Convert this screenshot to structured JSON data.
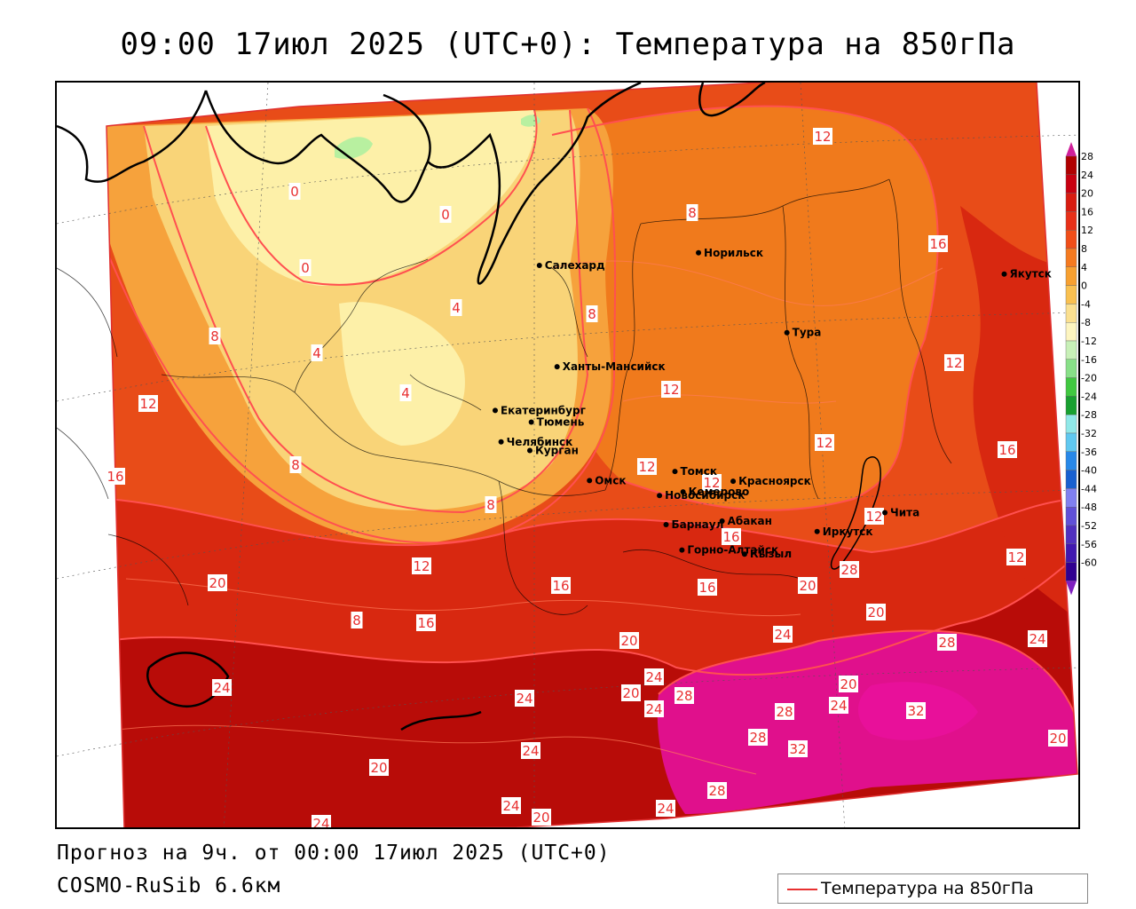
{
  "title": "09:00 17июл 2025 (UTC+0): Температура на 850гПа",
  "footer": {
    "forecast": "Прогноз на 9ч. от 00:00 17июл 2025 (UTC+0)",
    "model": "COSMO-RuSib 6.6км"
  },
  "legend": {
    "label": "Температура на 850гПа",
    "line_color": "#e83030"
  },
  "colorbar": {
    "ticks": [
      "28",
      "24",
      "20",
      "16",
      "12",
      "8",
      "4",
      "0",
      "-4",
      "-8",
      "-12",
      "-16",
      "-20",
      "-24",
      "-28",
      "-32",
      "-36",
      "-40",
      "-44",
      "-48",
      "-52",
      "-56",
      "-60"
    ],
    "colors": [
      "#b00000",
      "#c80010",
      "#d81c10",
      "#e83018",
      "#f04e18",
      "#f57a20",
      "#f7a030",
      "#f9c050",
      "#fbe090",
      "#fdf5c0",
      "#c8f0b8",
      "#88e088",
      "#40c840",
      "#18a030",
      "#90e8e8",
      "#60c8f0",
      "#2888e8",
      "#1860d0",
      "#8080f0",
      "#6050d8",
      "#5030c0",
      "#4018b0",
      "#300090"
    ],
    "top_arrow_color": "#d0209a",
    "bottom_arrow_color": "#8020c0"
  },
  "zone_colors": {
    "z0": "#fdf0a8",
    "z4": "#f9d478",
    "z8": "#f6a23c",
    "z12": "#f07a1c",
    "z16": "#e84c18",
    "z20": "#d82810",
    "z24": "#b80c08",
    "z28": "#e0108c",
    "z32": "#e8109a",
    "green": "#b8f0a0"
  },
  "cities": [
    {
      "name": "Норильск",
      "lon": 88.2,
      "lat": 69.35
    },
    {
      "name": "Якутск",
      "lon": 129.7,
      "lat": 62.0
    },
    {
      "name": "Салехард",
      "lon": 66.6,
      "lat": 66.5
    },
    {
      "name": "Тура",
      "lon": 100.2,
      "lat": 64.3
    },
    {
      "name": "Ханты-Мансийск",
      "lon": 69.0,
      "lat": 61.0
    },
    {
      "name": "Екатеринбург",
      "lon": 60.6,
      "lat": 56.8
    },
    {
      "name": "Тюмень",
      "lon": 65.5,
      "lat": 57.15
    },
    {
      "name": "Челябинск",
      "lon": 61.4,
      "lat": 55.15
    },
    {
      "name": "Курган",
      "lon": 65.3,
      "lat": 55.45
    },
    {
      "name": "Омск",
      "lon": 73.4,
      "lat": 55.0
    },
    {
      "name": "Новосибирск",
      "lon": 82.9,
      "lat": 55.0
    },
    {
      "name": "Томск",
      "lon": 85.0,
      "lat": 56.5
    },
    {
      "name": "Кемерово",
      "lon": 86.1,
      "lat": 55.35
    },
    {
      "name": "Красноярск",
      "lon": 92.9,
      "lat": 56.0
    },
    {
      "name": "Абакан",
      "lon": 91.4,
      "lat": 53.7
    },
    {
      "name": "Барнаул",
      "lon": 83.8,
      "lat": 53.35
    },
    {
      "name": "Горно-Алтайск",
      "lon": 85.95,
      "lat": 51.95
    },
    {
      "name": "Кызыл",
      "lon": 94.45,
      "lat": 51.7
    },
    {
      "name": "Иркутск",
      "lon": 104.3,
      "lat": 52.3
    },
    {
      "name": "Чита",
      "lon": 113.5,
      "lat": 52.05
    }
  ],
  "isotherm_labels": [
    "12",
    "8",
    "16",
    "0",
    "0",
    "0",
    "8",
    "4",
    "4",
    "8",
    "12",
    "12",
    "12",
    "12",
    "16",
    "8",
    "4",
    "12",
    "8",
    "16",
    "12",
    "16",
    "12",
    "12",
    "16",
    "20",
    "8",
    "16",
    "12",
    "20",
    "16",
    "20",
    "24",
    "20",
    "20",
    "24",
    "28",
    "24",
    "20",
    "24",
    "20",
    "24",
    "28",
    "28",
    "32",
    "24",
    "28",
    "24",
    "32",
    "24",
    "20",
    "24",
    "28",
    "24",
    "20",
    "24",
    "28"
  ]
}
